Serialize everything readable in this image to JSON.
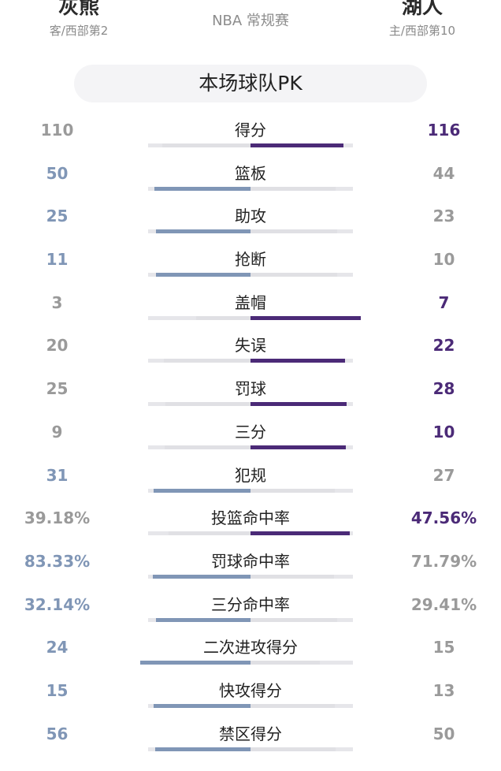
{
  "header": {
    "away": {
      "name": "灰熊",
      "sub": "客/西部第2"
    },
    "home": {
      "name": "湖人",
      "sub": "主/西部第10"
    },
    "game_type": "NBA 常规赛"
  },
  "pk_title": "本场球队PK",
  "stats": [
    {
      "label": "得分",
      "away": "110",
      "home": "116",
      "away_num": 110,
      "home_num": 116
    },
    {
      "label": "篮板",
      "away": "50",
      "home": "44",
      "away_num": 50,
      "home_num": 44
    },
    {
      "label": "助攻",
      "away": "25",
      "home": "23",
      "away_num": 25,
      "home_num": 23
    },
    {
      "label": "抢断",
      "away": "11",
      "home": "10",
      "away_num": 11,
      "home_num": 10
    },
    {
      "label": "盖帽",
      "away": "3",
      "home": "7",
      "away_num": 3,
      "home_num": 7
    },
    {
      "label": "失误",
      "away": "20",
      "home": "22",
      "away_num": 20,
      "home_num": 22
    },
    {
      "label": "罚球",
      "away": "25",
      "home": "28",
      "away_num": 25,
      "home_num": 28
    },
    {
      "label": "三分",
      "away": "9",
      "home": "10",
      "away_num": 9,
      "home_num": 10
    },
    {
      "label": "犯规",
      "away": "31",
      "home": "27",
      "away_num": 31,
      "home_num": 27
    },
    {
      "label": "投篮命中率",
      "away": "39.18%",
      "home": "47.56%",
      "away_num": 39.18,
      "home_num": 47.56
    },
    {
      "label": "罚球命中率",
      "away": "83.33%",
      "home": "71.79%",
      "away_num": 83.33,
      "home_num": 71.79
    },
    {
      "label": "三分命中率",
      "away": "32.14%",
      "home": "29.41%",
      "away_num": 32.14,
      "home_num": 29.41
    },
    {
      "label": "二次进攻得分",
      "away": "24",
      "home": "15",
      "away_num": 24,
      "home_num": 15
    },
    {
      "label": "快攻得分",
      "away": "15",
      "home": "13",
      "away_num": 15,
      "home_num": 13
    },
    {
      "label": "禁区得分",
      "away": "56",
      "home": "50",
      "away_num": 56,
      "home_num": 50
    }
  ],
  "colors": {
    "away": "#8096b6",
    "home": "#4b2a77",
    "neutral": "#9a9a9a"
  }
}
